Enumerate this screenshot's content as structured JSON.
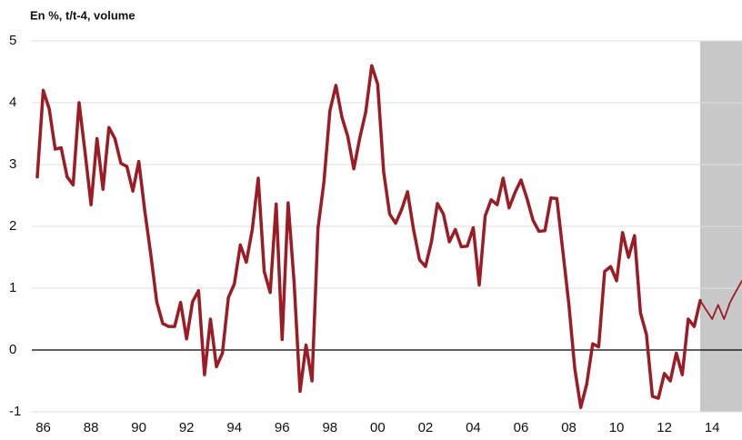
{
  "chart_data": {
    "type": "line",
    "title": "En %, t/t-4, volume",
    "categories": [
      null,
      "86",
      null,
      null,
      null,
      null,
      null,
      null,
      null,
      "88",
      null,
      null,
      null,
      null,
      null,
      null,
      null,
      "90",
      null,
      null,
      null,
      null,
      null,
      null,
      null,
      "92",
      null,
      null,
      null,
      null,
      null,
      null,
      null,
      "94",
      null,
      null,
      null,
      null,
      null,
      null,
      null,
      "96",
      null,
      null,
      null,
      null,
      null,
      null,
      null,
      "98",
      null,
      null,
      null,
      null,
      null,
      null,
      null,
      "00",
      null,
      null,
      null,
      null,
      null,
      null,
      null,
      "02",
      null,
      null,
      null,
      null,
      null,
      null,
      null,
      "04",
      null,
      null,
      null,
      null,
      null,
      null,
      null,
      "06",
      null,
      null,
      null,
      null,
      null,
      null,
      null,
      "08",
      null,
      null,
      null,
      null,
      null,
      null,
      null,
      "10",
      null,
      null,
      null,
      null,
      null,
      null,
      null,
      "12",
      null,
      null,
      null,
      null,
      null,
      null,
      null,
      "14",
      null,
      null,
      null,
      null,
      null
    ],
    "series": [
      {
        "color": "#9b1c24",
        "values": [
          2.8,
          4.2,
          3.9,
          3.25,
          3.27,
          2.8,
          2.67,
          4.0,
          3.2,
          2.35,
          3.42,
          2.6,
          3.6,
          3.42,
          3.02,
          2.97,
          2.57,
          3.05,
          2.25,
          1.55,
          0.78,
          0.43,
          0.38,
          0.38,
          0.77,
          0.18,
          0.78,
          0.96,
          -0.4,
          0.5,
          -0.27,
          -0.05,
          0.85,
          1.07,
          1.7,
          1.42,
          1.95,
          2.78,
          1.27,
          0.93,
          2.36,
          0.17,
          2.38,
          1.1,
          -0.67,
          0.08,
          -0.5,
          1.97,
          2.72,
          3.87,
          4.28,
          3.77,
          3.45,
          2.93,
          3.43,
          3.85,
          4.6,
          4.3,
          2.88,
          2.2,
          2.05,
          2.27,
          2.56,
          1.95,
          1.46,
          1.35,
          1.75,
          2.37,
          2.2,
          1.75,
          1.95,
          1.67,
          1.68,
          1.98,
          1.05,
          2.17,
          2.43,
          2.35,
          2.78,
          2.3,
          2.55,
          2.75,
          2.45,
          2.1,
          1.92,
          1.93,
          2.46,
          2.45,
          1.6,
          0.75,
          -0.3,
          -0.93,
          -0.55,
          0.1,
          0.05,
          1.27,
          1.35,
          1.12,
          1.9,
          1.5,
          1.85,
          0.6,
          0.25,
          -0.75,
          -0.78,
          -0.38,
          -0.5,
          -0.05,
          -0.4,
          0.5,
          0.38,
          0.8,
          null,
          null,
          null,
          null,
          null,
          null,
          null
        ]
      },
      {
        "color": "#9b1c24",
        "values": [
          null,
          null,
          null,
          null,
          null,
          null,
          null,
          null,
          null,
          null,
          null,
          null,
          null,
          null,
          null,
          null,
          null,
          null,
          null,
          null,
          null,
          null,
          null,
          null,
          null,
          null,
          null,
          null,
          null,
          null,
          null,
          null,
          null,
          null,
          null,
          null,
          null,
          null,
          null,
          null,
          null,
          null,
          null,
          null,
          null,
          null,
          null,
          null,
          null,
          null,
          null,
          null,
          null,
          null,
          null,
          null,
          null,
          null,
          null,
          null,
          null,
          null,
          null,
          null,
          null,
          null,
          null,
          null,
          null,
          null,
          null,
          null,
          null,
          null,
          null,
          null,
          null,
          null,
          null,
          null,
          null,
          null,
          null,
          null,
          null,
          null,
          null,
          null,
          null,
          null,
          null,
          null,
          null,
          null,
          null,
          null,
          null,
          null,
          null,
          null,
          null,
          null,
          null,
          null,
          null,
          null,
          null,
          null,
          null,
          null,
          null,
          0.8,
          0.65,
          0.5,
          0.73,
          0.5,
          0.77,
          0.95,
          1.12
        ]
      }
    ],
    "ylim": [
      -1,
      5
    ],
    "yticks": [
      -1,
      0,
      1,
      2,
      3,
      4,
      5
    ],
    "grid": true
  }
}
